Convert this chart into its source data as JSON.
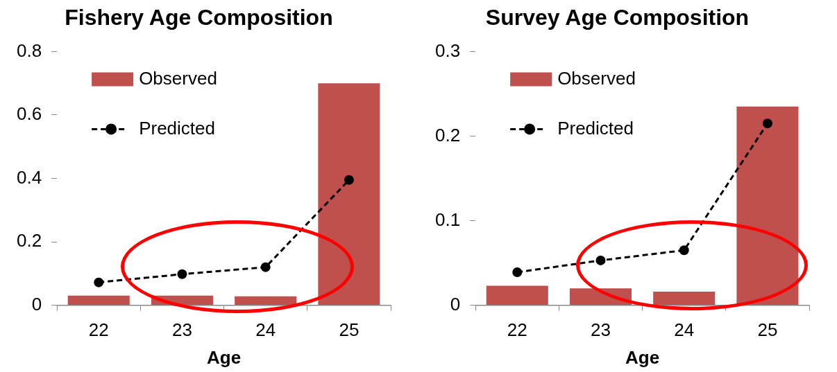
{
  "chart_data": [
    {
      "type": "bar",
      "title": "Fishery Age Composition",
      "xlabel": "Age",
      "categories": [
        "22",
        "23",
        "24",
        "25"
      ],
      "series": [
        {
          "name": "Observed",
          "color": "#c0504d",
          "values": [
            0.03,
            0.03,
            0.028,
            0.7
          ]
        },
        {
          "name": "Predicted",
          "type": "line",
          "color": "#000000",
          "values": [
            0.072,
            0.098,
            0.12,
            0.395
          ],
          "line_style": "dashed",
          "marker": "circle"
        }
      ],
      "ylim": [
        0,
        0.8
      ],
      "yticks": [
        0,
        0.2,
        0.4,
        0.6,
        0.8
      ],
      "grid": false,
      "legend": "top left"
    },
    {
      "type": "bar",
      "title": "Survey Age Composition",
      "xlabel": "Age",
      "categories": [
        "22",
        "23",
        "24",
        "25"
      ],
      "series": [
        {
          "name": "Observed",
          "color": "#c0504d",
          "values": [
            0.023,
            0.02,
            0.016,
            0.235
          ]
        },
        {
          "name": "Predicted",
          "type": "line",
          "color": "#000000",
          "values": [
            0.039,
            0.053,
            0.065,
            0.215
          ],
          "line_style": "dashed",
          "marker": "circle"
        }
      ],
      "ylim": [
        0,
        0.3
      ],
      "yticks": [
        0,
        0.1,
        0.2,
        0.3
      ],
      "grid": false,
      "legend": "top left"
    }
  ]
}
